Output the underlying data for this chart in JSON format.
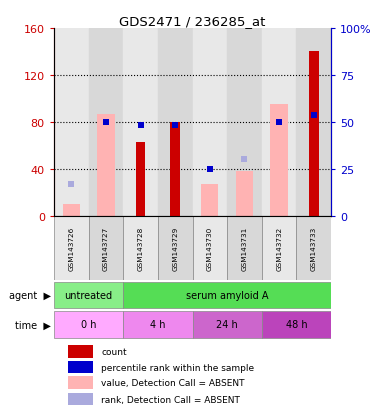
{
  "title": "GDS2471 / 236285_at",
  "samples": [
    "GSM143726",
    "GSM143727",
    "GSM143728",
    "GSM143729",
    "GSM143730",
    "GSM143731",
    "GSM143732",
    "GSM143733"
  ],
  "count_values": [
    null,
    null,
    63,
    80,
    null,
    null,
    null,
    140
  ],
  "count_color": "#cc0000",
  "pink_bar_values": [
    10,
    87,
    null,
    null,
    27,
    38,
    95,
    null
  ],
  "pink_bar_color": "#ffb3b3",
  "blue_square_values": [
    null,
    80,
    77,
    77,
    40,
    null,
    80,
    86
  ],
  "blue_sq_color": "#0000cc",
  "light_blue_sq_values": [
    27,
    null,
    null,
    null,
    40,
    48,
    null,
    null
  ],
  "light_blue_sq_color": "#aaaadd",
  "ylim_left": [
    0,
    160
  ],
  "ylim_right": [
    0,
    100
  ],
  "left_yticks": [
    0,
    40,
    80,
    120,
    160
  ],
  "right_yticks": [
    0,
    25,
    50,
    75,
    100
  ],
  "left_tick_labels": [
    "0",
    "40",
    "80",
    "120",
    "160"
  ],
  "right_tick_labels": [
    "0",
    "25",
    "50",
    "75",
    "100%"
  ],
  "left_axis_color": "#cc0000",
  "right_axis_color": "#0000cc",
  "col_bg_even": "#e8e8e8",
  "col_bg_odd": "#d8d8d8",
  "agent_groups": [
    {
      "label": "untreated",
      "start": 0,
      "end": 2,
      "color": "#88ee88"
    },
    {
      "label": "serum amyloid A",
      "start": 2,
      "end": 8,
      "color": "#55dd55"
    }
  ],
  "time_groups": [
    {
      "label": "0 h",
      "start": 0,
      "end": 2,
      "color": "#ffaaff"
    },
    {
      "label": "4 h",
      "start": 2,
      "end": 4,
      "color": "#ee88ee"
    },
    {
      "label": "24 h",
      "start": 4,
      "end": 6,
      "color": "#cc66cc"
    },
    {
      "label": "48 h",
      "start": 6,
      "end": 8,
      "color": "#bb44bb"
    }
  ],
  "legend_items": [
    {
      "label": "count",
      "color": "#cc0000"
    },
    {
      "label": "percentile rank within the sample",
      "color": "#0000cc"
    },
    {
      "label": "value, Detection Call = ABSENT",
      "color": "#ffb3b3"
    },
    {
      "label": "rank, Detection Call = ABSENT",
      "color": "#aaaadd"
    }
  ],
  "bar_width": 0.5,
  "count_bar_width": 0.28
}
